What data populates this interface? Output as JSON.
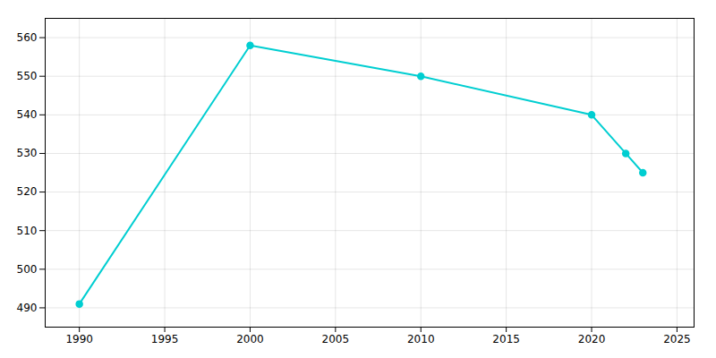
{
  "chart_data": {
    "type": "line",
    "x": [
      1990,
      2000,
      2010,
      2020,
      2022,
      2023
    ],
    "values": [
      491,
      558,
      550,
      540,
      530,
      525
    ],
    "color": "#00CED1",
    "marker": "circle",
    "xlim": [
      1988,
      2026
    ],
    "ylim": [
      485,
      565
    ],
    "xticks": [
      1990,
      1995,
      2000,
      2005,
      2010,
      2015,
      2020,
      2025
    ],
    "yticks": [
      490,
      500,
      510,
      520,
      530,
      540,
      550,
      560
    ],
    "grid": true
  }
}
